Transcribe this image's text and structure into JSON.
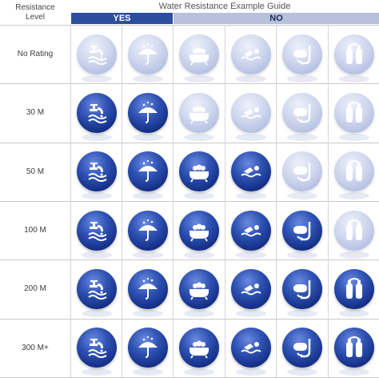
{
  "header": {
    "resistance_label_line1": "Resistance",
    "resistance_label_line2": "Level",
    "title": "Water Resistance Example Guide",
    "yes_label": "YES",
    "no_label": "NO"
  },
  "columns": [
    {
      "icon": "faucet-hands-icon"
    },
    {
      "icon": "umbrella-rain-icon"
    },
    {
      "icon": "bathtub-icon"
    },
    {
      "icon": "swimmer-icon"
    },
    {
      "icon": "snorkel-mask-icon"
    },
    {
      "icon": "scuba-tank-icon"
    }
  ],
  "rows": [
    {
      "label": "No Rating",
      "active": [
        false,
        false,
        false,
        false,
        false,
        false
      ]
    },
    {
      "label": "30 M",
      "active": [
        true,
        true,
        false,
        false,
        false,
        false
      ]
    },
    {
      "label": "50 M",
      "active": [
        true,
        true,
        true,
        true,
        false,
        false
      ]
    },
    {
      "label": "100 M",
      "active": [
        true,
        true,
        true,
        true,
        true,
        false
      ]
    },
    {
      "label": "200 M",
      "active": [
        true,
        true,
        true,
        true,
        true,
        true
      ]
    },
    {
      "label": "300 M+",
      "active": [
        true,
        true,
        true,
        true,
        true,
        true
      ]
    }
  ],
  "colors": {
    "yes_bar": "#2d4d9f",
    "no_bar": "#b7c0dd",
    "active_ball": "#1f3f9f",
    "inactive_ball": "#c7d0ea"
  }
}
